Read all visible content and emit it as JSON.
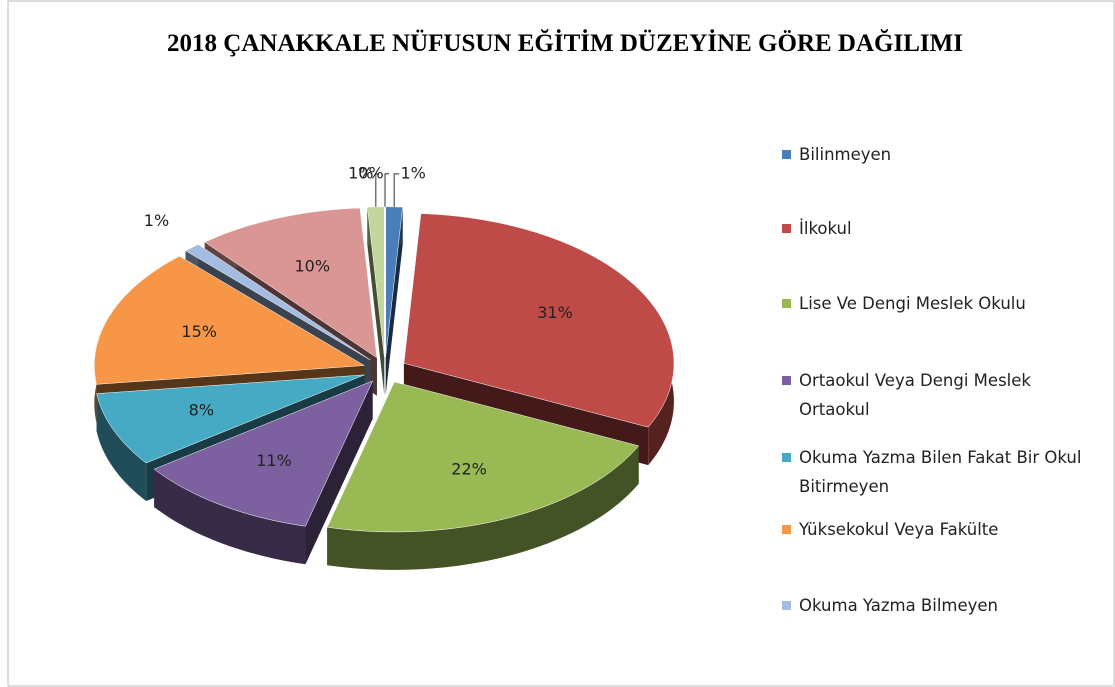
{
  "chart_data": {
    "type": "pie",
    "title": "2018 ÇANAKKALE  NÜFUSUN EĞİTİM DÜZEYİNE  GÖRE DAĞILIMI",
    "categories": [
      "Bilinmeyen",
      "İlkokul",
      "Lise Ve Dengi Meslek Okulu",
      "Ortaokul Veya Dengi Meslek Ortaokul",
      "Okuma Yazma Bilen Fakat Bir Okul Bitirmeyen",
      "Yüksekokul Veya Fakülte",
      "Okuma Yazma Bilmeyen",
      null,
      null,
      null
    ],
    "values": [
      1,
      31,
      22,
      11,
      8,
      15,
      1,
      10,
      1,
      0
    ],
    "value_labels": [
      "1%",
      "31%",
      "22%",
      "11%",
      "8%",
      "15%",
      "1%",
      "10%",
      "1%",
      "0%"
    ],
    "colors": [
      "#4a7ebb",
      "#be4b48",
      "#98b954",
      "#7d60a0",
      "#46aac5",
      "#f79646",
      "#a4bce0",
      "#d99694",
      "#c3d69b",
      "#b3a2c7"
    ],
    "legend": "right"
  }
}
